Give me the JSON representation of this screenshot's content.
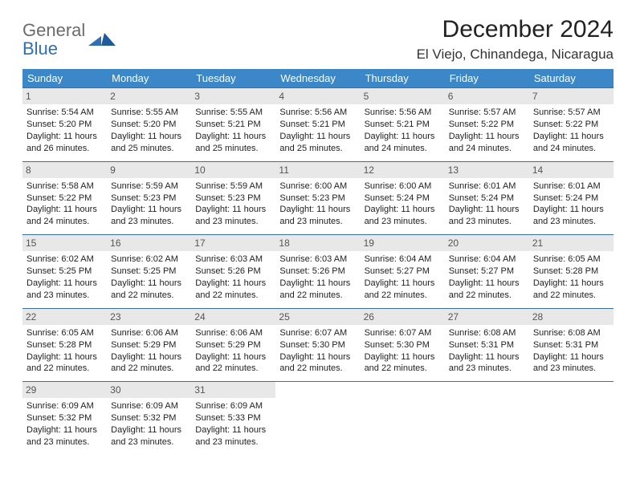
{
  "brand": {
    "general": "General",
    "blue": "Blue"
  },
  "title": "December 2024",
  "location": "El Viejo, Chinandega, Nicaragua",
  "colors": {
    "header_bg": "#3b87c8",
    "header_fg": "#ffffff",
    "row_border": "#3b6fa3",
    "daynum_bg": "#e8e8e8",
    "empty_bg": "#f2f2f2",
    "logo_gray": "#6b6b6b",
    "logo_blue": "#2f6fb3"
  },
  "weekdays": [
    "Sunday",
    "Monday",
    "Tuesday",
    "Wednesday",
    "Thursday",
    "Friday",
    "Saturday"
  ],
  "weeks": [
    [
      {
        "n": "1",
        "sr": "5:54 AM",
        "ss": "5:20 PM",
        "dh": "11",
        "dm": "26"
      },
      {
        "n": "2",
        "sr": "5:55 AM",
        "ss": "5:20 PM",
        "dh": "11",
        "dm": "25"
      },
      {
        "n": "3",
        "sr": "5:55 AM",
        "ss": "5:21 PM",
        "dh": "11",
        "dm": "25"
      },
      {
        "n": "4",
        "sr": "5:56 AM",
        "ss": "5:21 PM",
        "dh": "11",
        "dm": "25"
      },
      {
        "n": "5",
        "sr": "5:56 AM",
        "ss": "5:21 PM",
        "dh": "11",
        "dm": "24"
      },
      {
        "n": "6",
        "sr": "5:57 AM",
        "ss": "5:22 PM",
        "dh": "11",
        "dm": "24"
      },
      {
        "n": "7",
        "sr": "5:57 AM",
        "ss": "5:22 PM",
        "dh": "11",
        "dm": "24"
      }
    ],
    [
      {
        "n": "8",
        "sr": "5:58 AM",
        "ss": "5:22 PM",
        "dh": "11",
        "dm": "24"
      },
      {
        "n": "9",
        "sr": "5:59 AM",
        "ss": "5:23 PM",
        "dh": "11",
        "dm": "23"
      },
      {
        "n": "10",
        "sr": "5:59 AM",
        "ss": "5:23 PM",
        "dh": "11",
        "dm": "23"
      },
      {
        "n": "11",
        "sr": "6:00 AM",
        "ss": "5:23 PM",
        "dh": "11",
        "dm": "23"
      },
      {
        "n": "12",
        "sr": "6:00 AM",
        "ss": "5:24 PM",
        "dh": "11",
        "dm": "23"
      },
      {
        "n": "13",
        "sr": "6:01 AM",
        "ss": "5:24 PM",
        "dh": "11",
        "dm": "23"
      },
      {
        "n": "14",
        "sr": "6:01 AM",
        "ss": "5:24 PM",
        "dh": "11",
        "dm": "23"
      }
    ],
    [
      {
        "n": "15",
        "sr": "6:02 AM",
        "ss": "5:25 PM",
        "dh": "11",
        "dm": "23"
      },
      {
        "n": "16",
        "sr": "6:02 AM",
        "ss": "5:25 PM",
        "dh": "11",
        "dm": "22"
      },
      {
        "n": "17",
        "sr": "6:03 AM",
        "ss": "5:26 PM",
        "dh": "11",
        "dm": "22"
      },
      {
        "n": "18",
        "sr": "6:03 AM",
        "ss": "5:26 PM",
        "dh": "11",
        "dm": "22"
      },
      {
        "n": "19",
        "sr": "6:04 AM",
        "ss": "5:27 PM",
        "dh": "11",
        "dm": "22"
      },
      {
        "n": "20",
        "sr": "6:04 AM",
        "ss": "5:27 PM",
        "dh": "11",
        "dm": "22"
      },
      {
        "n": "21",
        "sr": "6:05 AM",
        "ss": "5:28 PM",
        "dh": "11",
        "dm": "22"
      }
    ],
    [
      {
        "n": "22",
        "sr": "6:05 AM",
        "ss": "5:28 PM",
        "dh": "11",
        "dm": "22"
      },
      {
        "n": "23",
        "sr": "6:06 AM",
        "ss": "5:29 PM",
        "dh": "11",
        "dm": "22"
      },
      {
        "n": "24",
        "sr": "6:06 AM",
        "ss": "5:29 PM",
        "dh": "11",
        "dm": "22"
      },
      {
        "n": "25",
        "sr": "6:07 AM",
        "ss": "5:30 PM",
        "dh": "11",
        "dm": "22"
      },
      {
        "n": "26",
        "sr": "6:07 AM",
        "ss": "5:30 PM",
        "dh": "11",
        "dm": "22"
      },
      {
        "n": "27",
        "sr": "6:08 AM",
        "ss": "5:31 PM",
        "dh": "11",
        "dm": "23"
      },
      {
        "n": "28",
        "sr": "6:08 AM",
        "ss": "5:31 PM",
        "dh": "11",
        "dm": "23"
      }
    ],
    [
      {
        "n": "29",
        "sr": "6:09 AM",
        "ss": "5:32 PM",
        "dh": "11",
        "dm": "23"
      },
      {
        "n": "30",
        "sr": "6:09 AM",
        "ss": "5:32 PM",
        "dh": "11",
        "dm": "23"
      },
      {
        "n": "31",
        "sr": "6:09 AM",
        "ss": "5:33 PM",
        "dh": "11",
        "dm": "23"
      },
      null,
      null,
      null,
      null
    ]
  ],
  "labels": {
    "sunrise": "Sunrise:",
    "sunset": "Sunset:",
    "daylight_prefix": "Daylight:",
    "hours_word": "hours",
    "and_word": "and",
    "minutes_word": "minutes."
  }
}
